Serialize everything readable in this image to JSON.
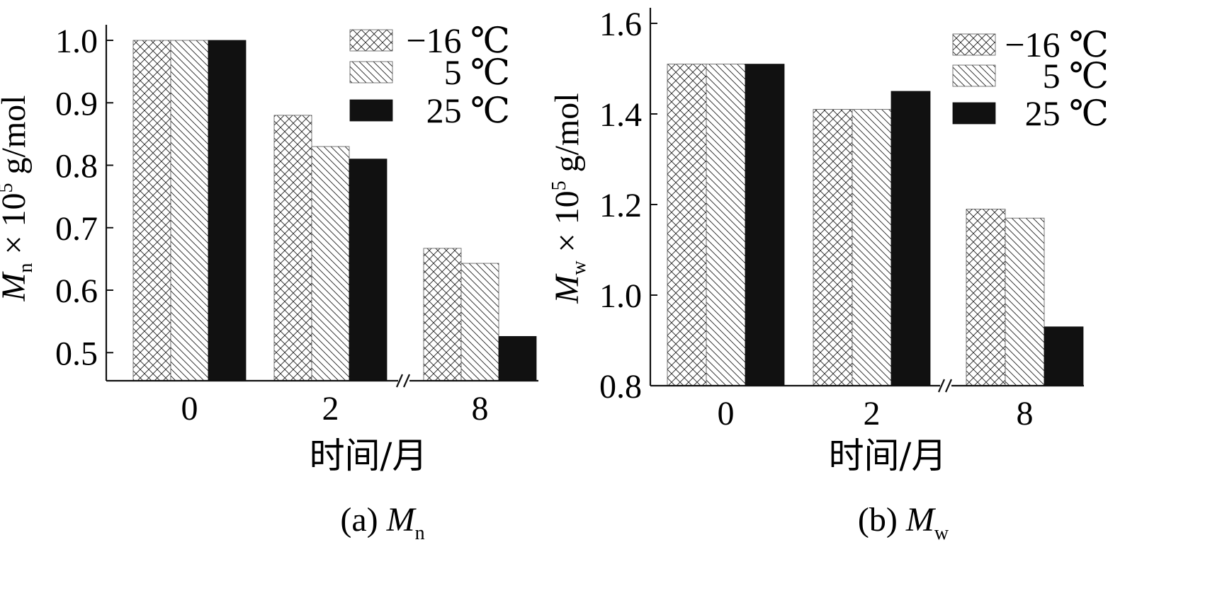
{
  "chart_data": [
    {
      "panel": "a",
      "type": "bar",
      "caption_prefix": "(a)",
      "caption_symbol": "M",
      "caption_subscript": "n",
      "categories": [
        "0",
        "2",
        "8"
      ],
      "series": [
        {
          "name": "−16 ℃",
          "pattern": "crosshatch",
          "values": [
            1.0,
            0.88,
            0.667
          ]
        },
        {
          "name": "5 ℃",
          "pattern": "diagonal",
          "values": [
            1.0,
            0.83,
            0.643
          ]
        },
        {
          "name": "25 ℃",
          "pattern": "solid",
          "values": [
            1.0,
            0.81,
            0.526
          ]
        }
      ],
      "ylim": [
        0.455,
        1.0
      ],
      "yticks": [
        "1.0",
        "0.9",
        "0.8",
        "0.7",
        "0.6",
        "0.5"
      ],
      "ylabel_symbol": "M",
      "ylabel_subscript": "n",
      "ylabel_mid": " × 10",
      "ylabel_sup": "5",
      "ylabel_unit": " g/mol",
      "xlabel": "时间/月",
      "axis_break": true,
      "legend_position": "top-right",
      "grid": false
    },
    {
      "panel": "b",
      "type": "bar",
      "caption_prefix": "(b)",
      "caption_symbol": "M",
      "caption_subscript": "w",
      "categories": [
        "0",
        "2",
        "8"
      ],
      "series": [
        {
          "name": "−16 ℃",
          "pattern": "crosshatch",
          "values": [
            1.51,
            1.41,
            1.19
          ]
        },
        {
          "name": "5 ℃",
          "pattern": "diagonal",
          "values": [
            1.51,
            1.41,
            1.17
          ]
        },
        {
          "name": "25 ℃",
          "pattern": "solid",
          "values": [
            1.51,
            1.45,
            0.93
          ]
        }
      ],
      "ylim": [
        0.8,
        1.6
      ],
      "yticks": [
        "1.6",
        "1.4",
        "1.2",
        "1.0",
        "0.8"
      ],
      "ylabel_symbol": "M",
      "ylabel_subscript": "w",
      "ylabel_mid": " × 10",
      "ylabel_sup": "5",
      "ylabel_unit": " g/mol",
      "xlabel": "时间/月",
      "axis_break": true,
      "legend_position": "top-right",
      "grid": false
    }
  ]
}
